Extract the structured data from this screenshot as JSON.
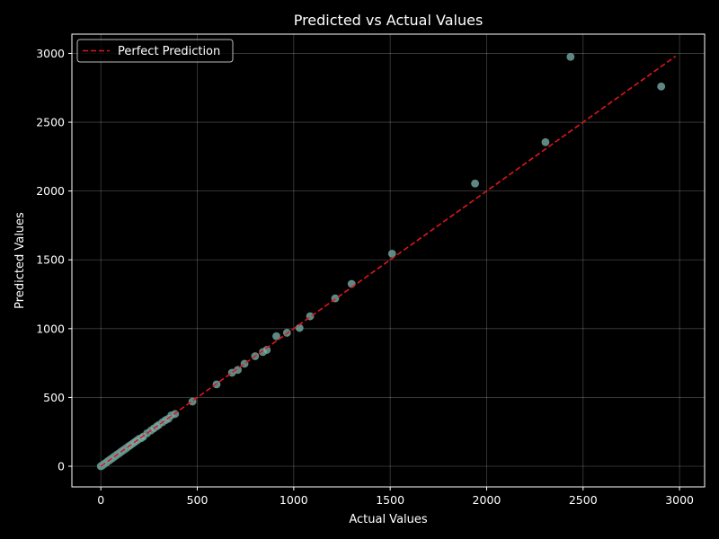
{
  "chart_data": {
    "type": "scatter",
    "title": "Predicted vs Actual Values",
    "xlabel": "Actual Values",
    "ylabel": "Predicted Values",
    "xlim": [
      -150,
      3130
    ],
    "ylim": [
      -150,
      3140
    ],
    "xticks": [
      0,
      500,
      1000,
      1500,
      2000,
      2500,
      3000
    ],
    "yticks": [
      0,
      500,
      1000,
      1500,
      2000,
      2500,
      3000
    ],
    "grid": true,
    "legend": {
      "placement": "top-left",
      "entries": [
        "Perfect Prediction"
      ]
    },
    "reference_line": {
      "name": "Perfect Prediction",
      "x": [
        0,
        2980
      ],
      "y": [
        0,
        2980
      ],
      "color": "#e0161b",
      "style": "dashed"
    },
    "series": [
      {
        "type": "scatter",
        "color": "#7fb3ad",
        "points": [
          [
            0,
            0
          ],
          [
            3,
            2
          ],
          [
            6,
            5
          ],
          [
            9,
            8
          ],
          [
            12,
            12
          ],
          [
            16,
            15
          ],
          [
            20,
            20
          ],
          [
            25,
            24
          ],
          [
            30,
            29
          ],
          [
            35,
            35
          ],
          [
            40,
            40
          ],
          [
            45,
            44
          ],
          [
            50,
            50
          ],
          [
            55,
            55
          ],
          [
            60,
            59
          ],
          [
            65,
            65
          ],
          [
            70,
            70
          ],
          [
            75,
            74
          ],
          [
            80,
            80
          ],
          [
            85,
            85
          ],
          [
            90,
            90
          ],
          [
            95,
            94
          ],
          [
            100,
            100
          ],
          [
            105,
            105
          ],
          [
            110,
            110
          ],
          [
            115,
            115
          ],
          [
            120,
            120
          ],
          [
            125,
            125
          ],
          [
            130,
            130
          ],
          [
            135,
            135
          ],
          [
            140,
            140
          ],
          [
            145,
            145
          ],
          [
            150,
            150
          ],
          [
            160,
            160
          ],
          [
            170,
            170
          ],
          [
            180,
            180
          ],
          [
            190,
            190
          ],
          [
            200,
            200
          ],
          [
            210,
            205
          ],
          [
            220,
            215
          ],
          [
            240,
            240
          ],
          [
            260,
            260
          ],
          [
            275,
            275
          ],
          [
            290,
            290
          ],
          [
            300,
            300
          ],
          [
            320,
            320
          ],
          [
            335,
            335
          ],
          [
            350,
            345
          ],
          [
            365,
            370
          ],
          [
            385,
            380
          ],
          [
            475,
            470
          ],
          [
            600,
            595
          ],
          [
            680,
            680
          ],
          [
            710,
            700
          ],
          [
            745,
            745
          ],
          [
            800,
            800
          ],
          [
            840,
            830
          ],
          [
            860,
            845
          ],
          [
            910,
            945
          ],
          [
            965,
            970
          ],
          [
            1030,
            1005
          ],
          [
            1085,
            1090
          ],
          [
            1215,
            1220
          ],
          [
            1300,
            1325
          ],
          [
            1510,
            1545
          ],
          [
            1940,
            2055
          ],
          [
            2305,
            2355
          ],
          [
            2435,
            2975
          ],
          [
            2905,
            2760
          ]
        ]
      }
    ]
  }
}
